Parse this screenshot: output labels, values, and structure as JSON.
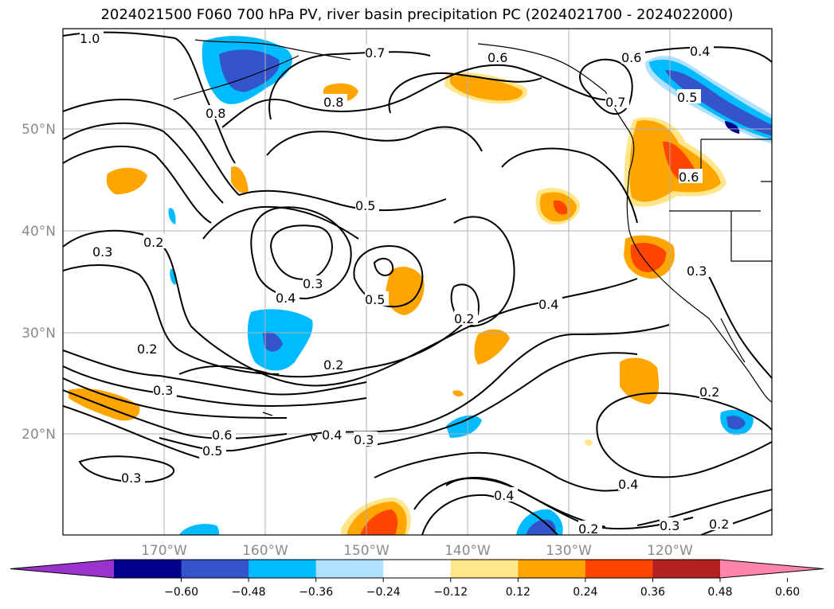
{
  "title": "2024021500 F060 700 hPa PV, river basin precipitation PC (2024021700 - 2024022000)",
  "lon_ticks": [
    "170°W",
    "160°W",
    "150°W",
    "140°W",
    "130°W",
    "120°W"
  ],
  "lat_ticks": [
    "50°N",
    "40°N",
    "30°N",
    "20°N"
  ],
  "contour_labels": [
    "1.0",
    "0.7",
    "0.6",
    "0.6",
    "0.4",
    "0.8",
    "0.8",
    "0.7",
    "0.5",
    "0.6",
    "0.5",
    "0.3",
    "0.2",
    "0.3",
    "0.4",
    "0.5",
    "0.2",
    "0.4",
    "0.3",
    "0.2",
    "0.2",
    "0.3",
    "0.6",
    "0.5",
    "0.4",
    "0.3",
    "0.2",
    "0.3",
    "0.4",
    "0.4",
    "0.2",
    "0.3",
    "0.2"
  ],
  "colorbar": {
    "tick_labels": [
      "−0.60",
      "−0.48",
      "−0.36",
      "−0.24",
      "−0.12",
      "0.12",
      "0.24",
      "0.36",
      "0.48",
      "0.60"
    ],
    "colors": [
      "#9a33cc",
      "#00008b",
      "#3354cc",
      "#00bbff",
      "#b0e2ff",
      "#ffffff",
      "#ffe68a",
      "#ffa500",
      "#ff4500",
      "#b22222",
      "#ff85aa"
    ]
  }
}
